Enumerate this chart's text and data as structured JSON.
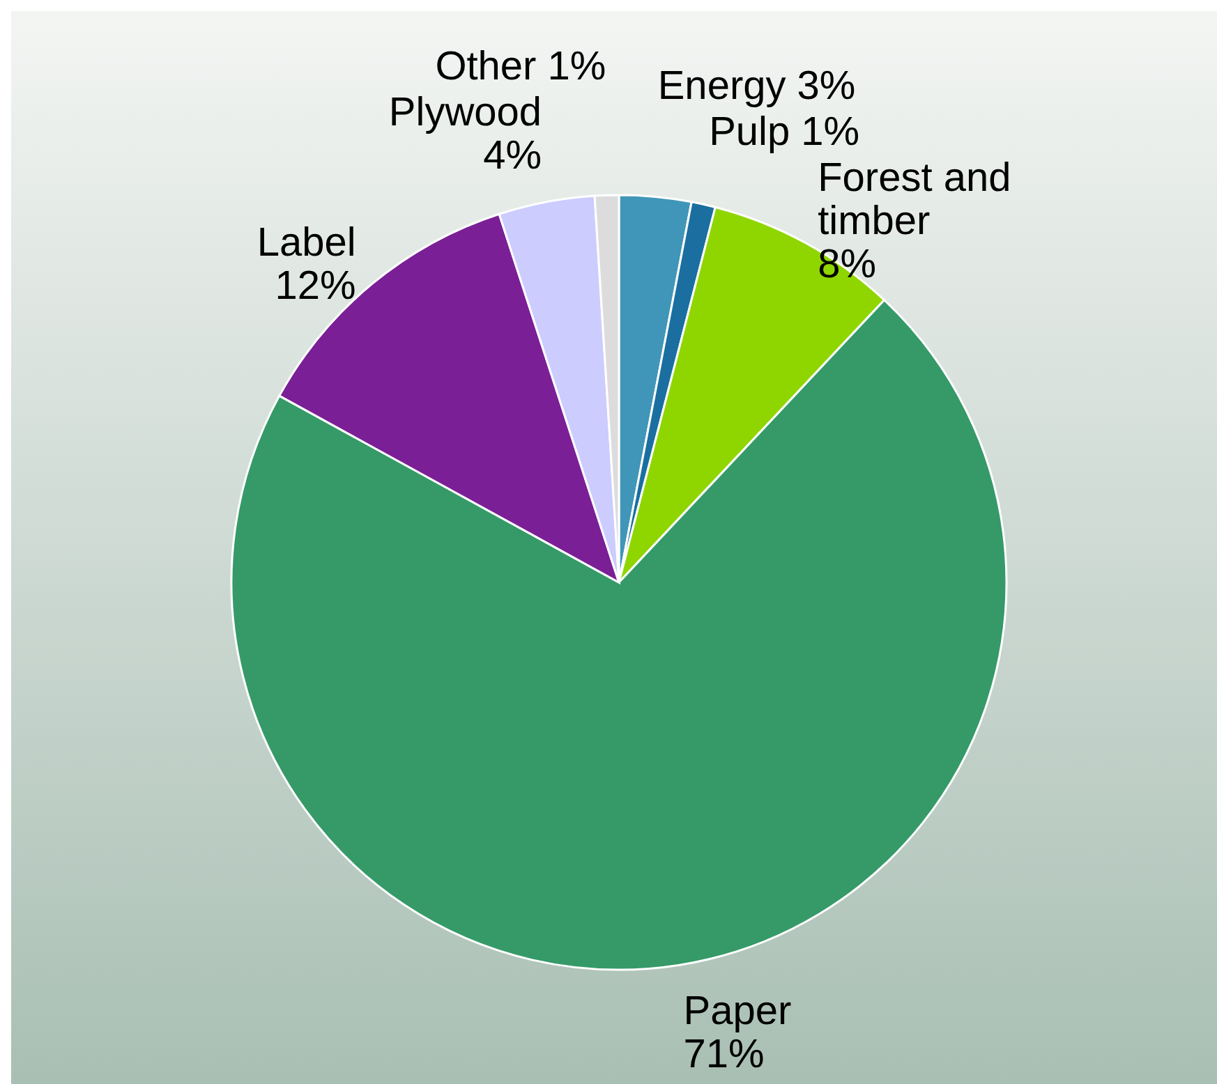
{
  "chart_data": {
    "type": "pie",
    "categories": [
      "Energy",
      "Pulp",
      "Forest and timber",
      "Paper",
      "Label",
      "Plywood",
      "Other"
    ],
    "values": [
      3,
      1,
      8,
      71,
      12,
      4,
      1
    ],
    "value_labels": [
      "3%",
      "1%",
      "8%",
      "71%",
      "12%",
      "4%",
      "1%"
    ],
    "colors": [
      "#4096b8",
      "#1a6fa0",
      "#8fd600",
      "#359a68",
      "#7b1f96",
      "#ccccff",
      "#dcdcdc"
    ]
  }
}
